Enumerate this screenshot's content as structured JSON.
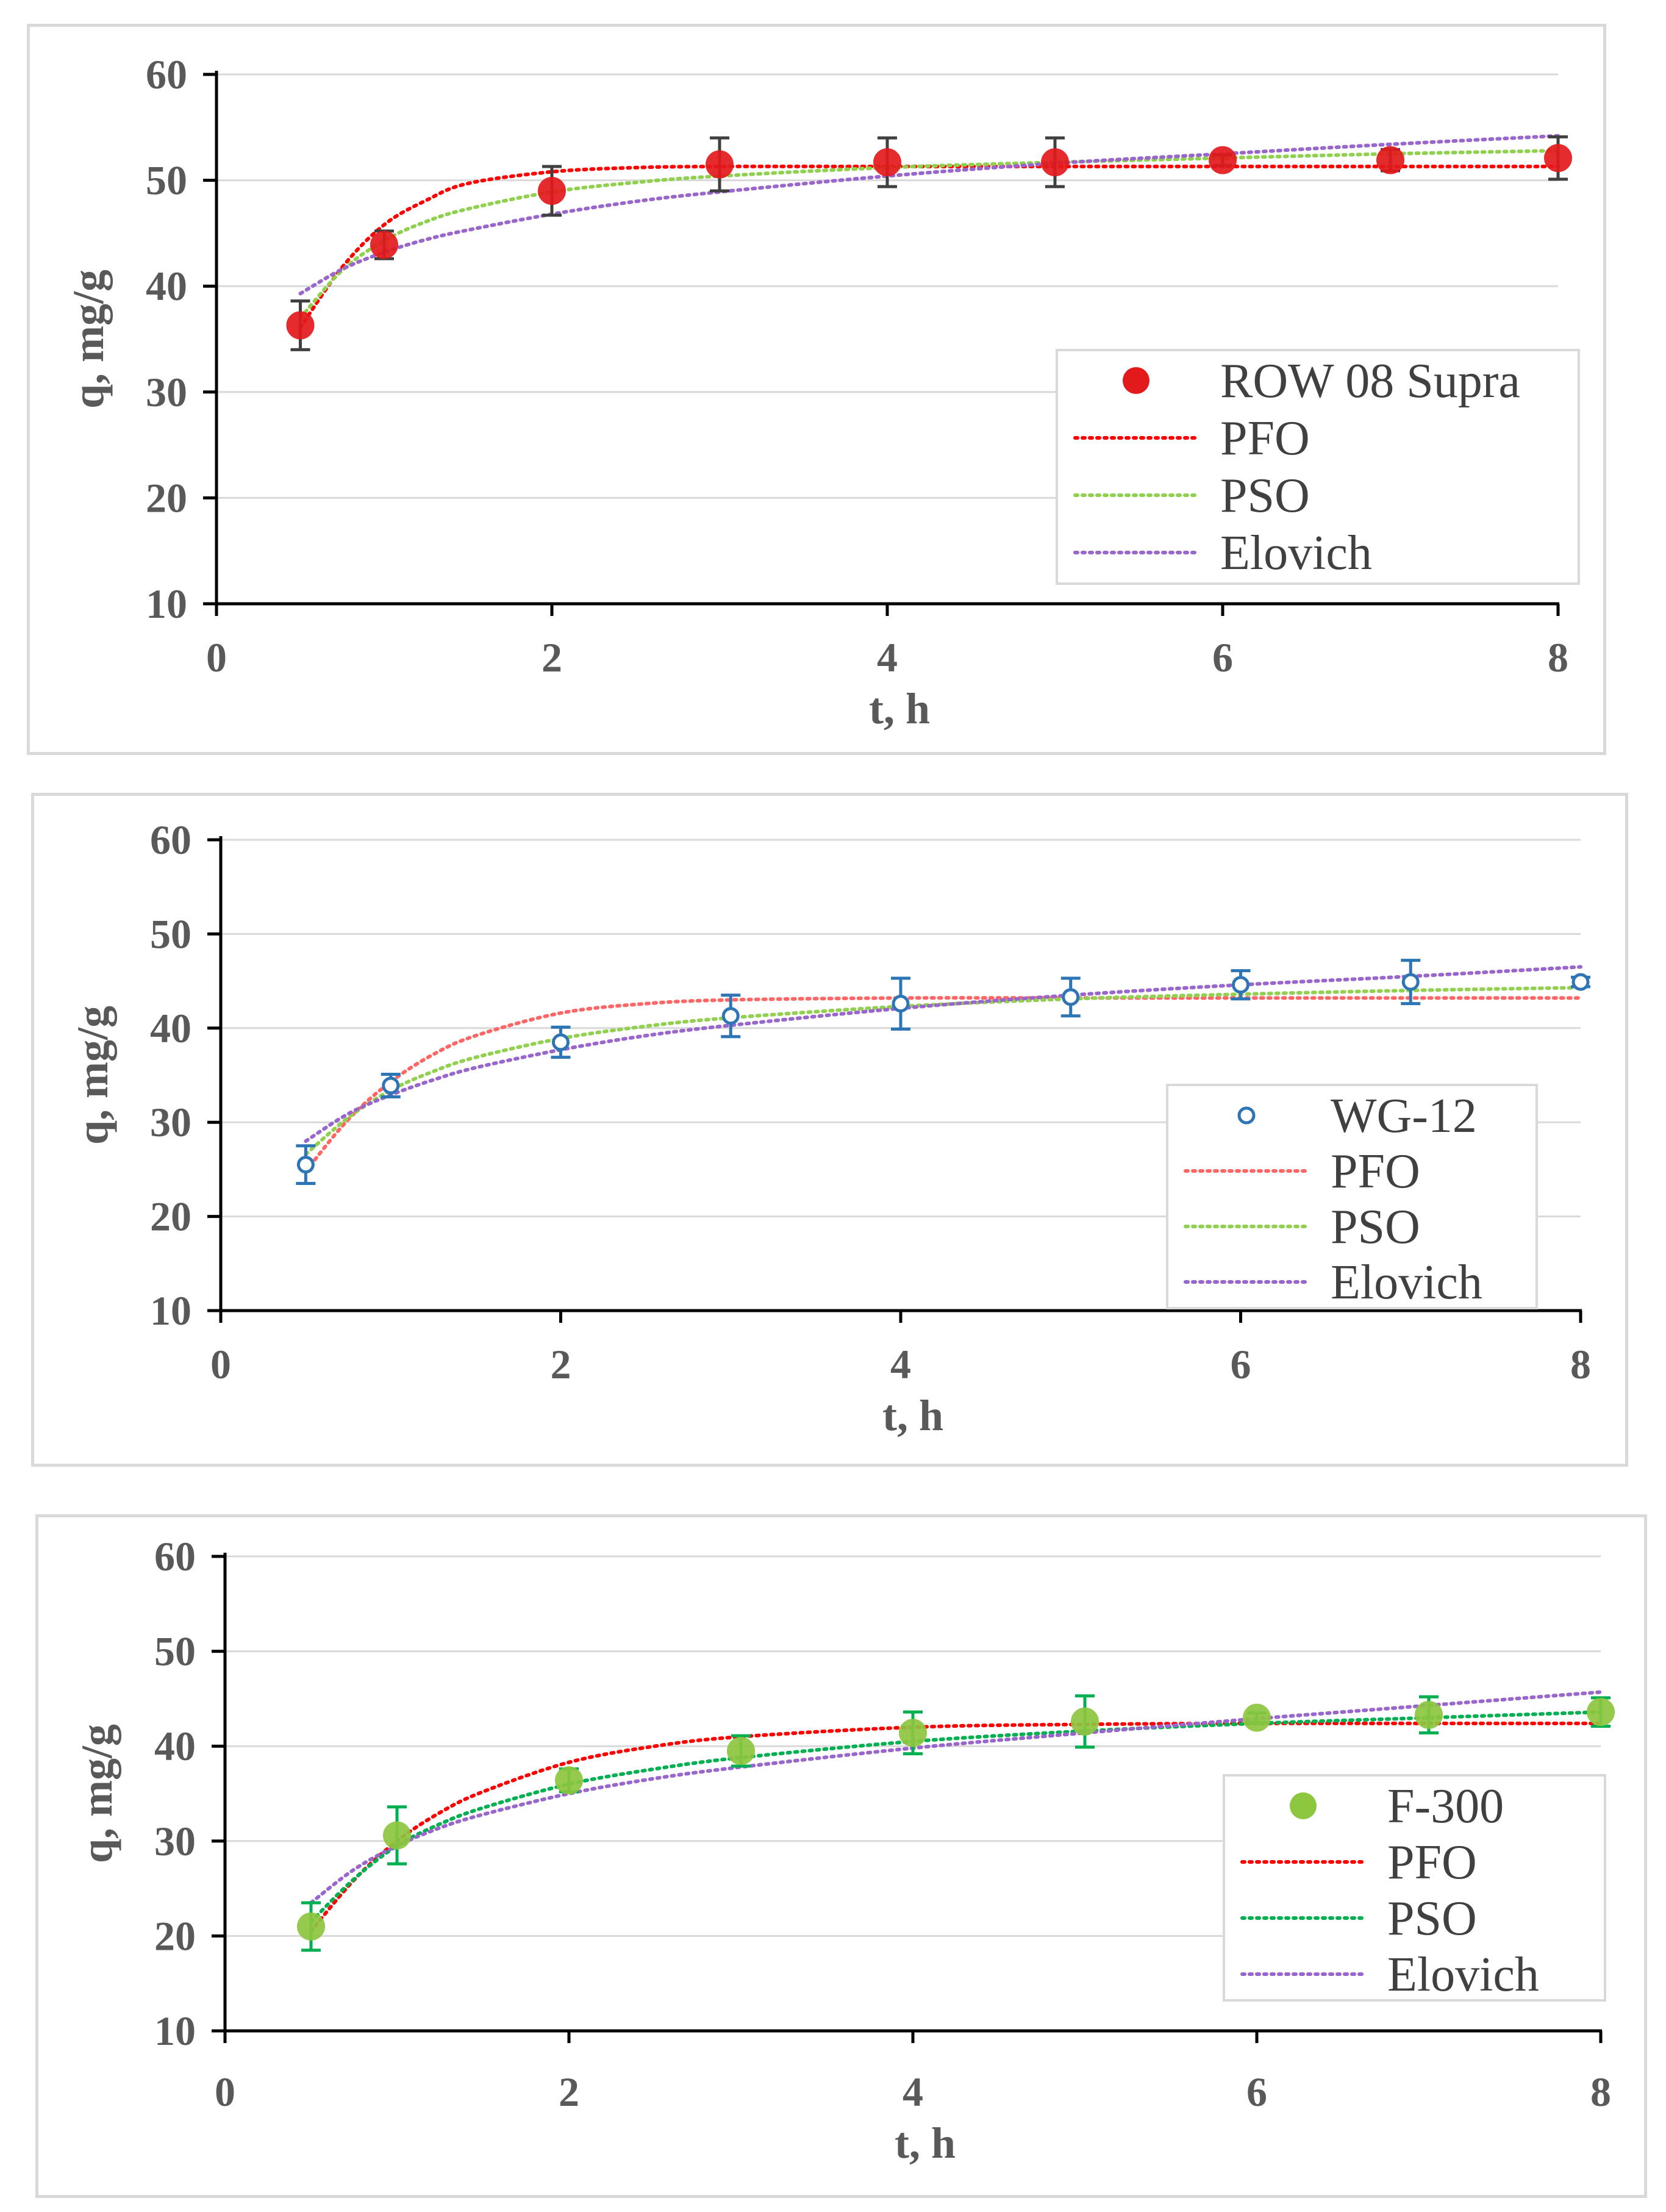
{
  "chart_data": [
    {
      "type": "scatter",
      "xlabel": "t, h",
      "ylabel": "q, mg/g",
      "xlim": [
        0,
        8
      ],
      "ylim": [
        10,
        60
      ],
      "xticks": [
        0,
        2,
        4,
        6,
        8
      ],
      "yticks": [
        10,
        20,
        30,
        40,
        50,
        60
      ],
      "grid": true,
      "legend_position": "bottom-right",
      "marker_style": "filled",
      "errorbar_color": "#404040",
      "series": [
        {
          "name": "ROW 08 Supra",
          "kind": "points",
          "color": "#e31a1c",
          "x": [
            0.5,
            1,
            2,
            3,
            4,
            5,
            6,
            7,
            8
          ],
          "y": [
            36.3,
            43.9,
            49.0,
            51.5,
            51.7,
            51.7,
            51.9,
            51.9,
            52.1
          ],
          "err": [
            2.3,
            1.3,
            2.3,
            2.5,
            2.3,
            2.3,
            0.5,
            1.0,
            2.0
          ]
        },
        {
          "name": "PFO",
          "kind": "fit",
          "color": "#ff0000",
          "x": [
            0.5,
            0.75,
            1,
            1.25,
            1.5,
            2,
            2.5,
            3,
            4,
            5,
            6,
            7,
            8
          ],
          "y": [
            36.1,
            41.8,
            45.8,
            48.1,
            49.7,
            50.8,
            51.2,
            51.3,
            51.3,
            51.3,
            51.3,
            51.3,
            51.3
          ]
        },
        {
          "name": "PSO",
          "kind": "fit",
          "color": "#8fd14f",
          "x": [
            0.5,
            0.75,
            1,
            1.25,
            1.5,
            2,
            2.5,
            3,
            4,
            5,
            6,
            7,
            8
          ],
          "y": [
            37.0,
            41.5,
            44.3,
            46.1,
            47.3,
            48.9,
            49.8,
            50.4,
            51.2,
            51.7,
            52.1,
            52.5,
            52.8
          ]
        },
        {
          "name": "Elovich",
          "kind": "fit",
          "color": "#9966cc",
          "x": [
            0.5,
            0.75,
            1,
            1.25,
            1.5,
            2,
            2.5,
            3,
            4,
            5,
            6,
            7,
            8
          ],
          "y": [
            39.3,
            41.6,
            43.2,
            44.4,
            45.3,
            46.8,
            48.0,
            48.9,
            50.4,
            51.6,
            52.5,
            53.4,
            54.2
          ]
        }
      ]
    },
    {
      "type": "scatter",
      "xlabel": "t, h",
      "ylabel": "q, mg/g",
      "xlim": [
        0,
        8
      ],
      "ylim": [
        10,
        60
      ],
      "xticks": [
        0,
        2,
        4,
        6,
        8
      ],
      "yticks": [
        10,
        20,
        30,
        40,
        50,
        60
      ],
      "grid": true,
      "legend_position": "bottom-right",
      "marker_style": "open",
      "errorbar_color": "#2e75b6",
      "series": [
        {
          "name": "WG-12",
          "kind": "points",
          "color": "#2e75b6",
          "x": [
            0.5,
            1,
            2,
            3,
            4,
            5,
            6,
            7,
            8
          ],
          "y": [
            25.5,
            33.9,
            38.5,
            41.3,
            42.6,
            43.3,
            44.6,
            44.9,
            44.9
          ],
          "err": [
            2.0,
            1.2,
            1.6,
            2.2,
            2.7,
            2.0,
            1.5,
            2.3,
            0.5
          ]
        },
        {
          "name": "PFO",
          "kind": "fit",
          "color": "#ff6666",
          "x": [
            0.5,
            0.75,
            1,
            1.25,
            1.5,
            2,
            2.5,
            3,
            4,
            5,
            6,
            7,
            8
          ],
          "y": [
            24.8,
            30.3,
            34.3,
            37.2,
            39.2,
            41.6,
            42.6,
            43.0,
            43.2,
            43.2,
            43.2,
            43.2,
            43.2
          ]
        },
        {
          "name": "PSO",
          "kind": "fit",
          "color": "#92d050",
          "x": [
            0.5,
            0.75,
            1,
            1.25,
            1.5,
            2,
            2.5,
            3,
            4,
            5,
            6,
            7,
            8
          ],
          "y": [
            26.6,
            30.5,
            33.4,
            35.4,
            36.9,
            38.9,
            40.2,
            41.1,
            42.3,
            43.1,
            43.6,
            44.0,
            44.3
          ]
        },
        {
          "name": "Elovich",
          "kind": "fit",
          "color": "#9966cc",
          "x": [
            0.5,
            0.75,
            1,
            1.25,
            1.5,
            2,
            2.5,
            3,
            4,
            5,
            6,
            7,
            8
          ],
          "y": [
            28.0,
            30.9,
            32.9,
            34.5,
            35.8,
            37.7,
            39.2,
            40.3,
            42.1,
            43.5,
            44.6,
            45.5,
            46.5
          ]
        }
      ]
    },
    {
      "type": "scatter",
      "xlabel": "t, h",
      "ylabel": "q, mg/g",
      "xlim": [
        0,
        8
      ],
      "ylim": [
        10,
        60
      ],
      "xticks": [
        0,
        2,
        4,
        6,
        8
      ],
      "yticks": [
        10,
        20,
        30,
        40,
        50,
        60
      ],
      "grid": true,
      "legend_position": "bottom-right",
      "marker_style": "filled",
      "errorbar_color": "#00b050",
      "series": [
        {
          "name": "F-300",
          "kind": "points",
          "color": "#8dc63f",
          "x": [
            0.5,
            1,
            2,
            3,
            4,
            5,
            6,
            7,
            8
          ],
          "y": [
            21.0,
            30.6,
            36.4,
            39.5,
            41.4,
            42.6,
            43.0,
            43.3,
            43.6
          ],
          "err": [
            2.5,
            3.0,
            1.2,
            1.6,
            2.2,
            2.7,
            0.5,
            1.9,
            1.5
          ]
        },
        {
          "name": "PFO",
          "kind": "fit",
          "color": "#ff0000",
          "x": [
            0.5,
            0.75,
            1,
            1.25,
            1.5,
            2,
            2.5,
            3,
            4,
            5,
            6,
            7,
            8
          ],
          "y": [
            20.5,
            25.9,
            30.0,
            33.0,
            35.2,
            38.3,
            40.0,
            41.0,
            42.0,
            42.3,
            42.4,
            42.4,
            42.4
          ]
        },
        {
          "name": "PSO",
          "kind": "fit",
          "color": "#00b050",
          "x": [
            0.5,
            0.75,
            1,
            1.25,
            1.5,
            2,
            2.5,
            3,
            4,
            5,
            6,
            7,
            8
          ],
          "y": [
            21.5,
            26.0,
            29.5,
            31.8,
            33.5,
            36.0,
            37.6,
            38.8,
            40.5,
            41.6,
            42.4,
            43.0,
            43.6
          ]
        },
        {
          "name": "Elovich",
          "kind": "fit",
          "color": "#9966cc",
          "x": [
            0.5,
            0.75,
            1,
            1.25,
            1.5,
            2,
            2.5,
            3,
            4,
            5,
            6,
            7,
            8
          ],
          "y": [
            23.5,
            27.0,
            29.5,
            31.4,
            32.8,
            35.0,
            36.6,
            37.8,
            39.8,
            41.4,
            42.9,
            44.3,
            45.7
          ]
        }
      ]
    }
  ]
}
